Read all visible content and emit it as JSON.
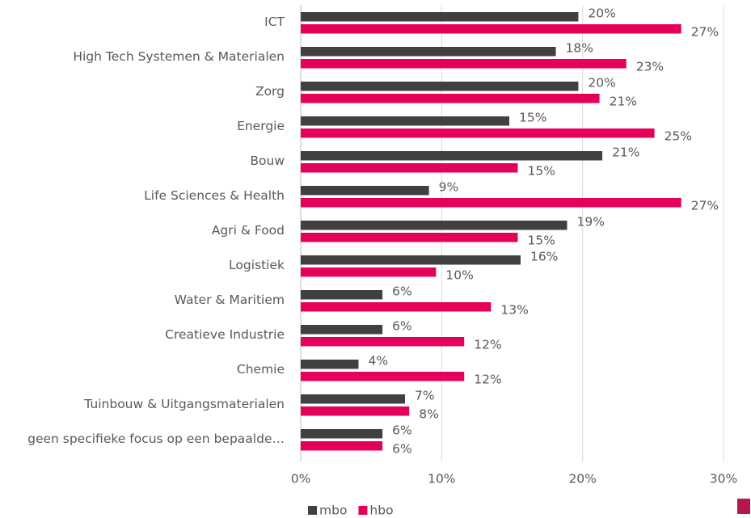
{
  "chart_data": {
    "type": "hbar",
    "categories": [
      "ICT",
      "High Tech Systemen & Materialen",
      "Zorg",
      "Energie",
      "Bouw",
      "Life Sciences & Health",
      "Agri & Food",
      "Logistiek",
      "Water & Maritiem",
      "Creatieve Industrie",
      "Chemie",
      "Tuinbouw & Uitgangsmaterialen",
      "geen specifieke focus op een bepaalde…"
    ],
    "series": [
      {
        "name": "mbo",
        "color": "#404040",
        "values": [
          19.7,
          18.1,
          19.7,
          14.8,
          21.4,
          9.1,
          18.9,
          15.6,
          5.8,
          5.8,
          4.1,
          7.4,
          5.8
        ],
        "value_labels": [
          "20%",
          "18%",
          "20%",
          "15%",
          "21%",
          "9%",
          "19%",
          "16%",
          "6%",
          "6%",
          "4%",
          "7%",
          "6%"
        ]
      },
      {
        "name": "hbo",
        "color": "#e5005a",
        "values": [
          27.0,
          23.1,
          21.2,
          25.1,
          15.4,
          27.0,
          15.4,
          9.6,
          13.5,
          11.6,
          11.6,
          7.7,
          5.8
        ],
        "value_labels": [
          "27%",
          "23%",
          "21%",
          "25%",
          "15%",
          "27%",
          "15%",
          "10%",
          "13%",
          "12%",
          "12%",
          "8%",
          "6%"
        ]
      }
    ],
    "xlim": [
      0,
      30
    ],
    "xticks": [
      {
        "value": 0,
        "label": "0%"
      },
      {
        "value": 10,
        "label": "10%"
      },
      {
        "value": 20,
        "label": "20%"
      },
      {
        "value": 30,
        "label": "30%"
      }
    ],
    "grid": true,
    "legend": "bottom"
  }
}
